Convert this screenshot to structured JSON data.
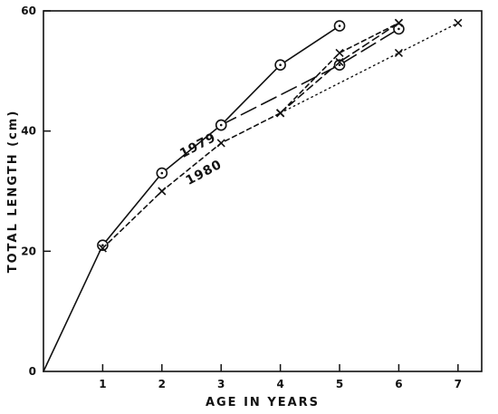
{
  "chart_data": {
    "type": "line",
    "xlabel": "AGE IN YEARS",
    "ylabel": "TOTAL LENGTH (cm)",
    "xlim": [
      0,
      7.4
    ],
    "ylim": [
      0,
      60
    ],
    "x_ticks": [
      1,
      2,
      3,
      4,
      5,
      6,
      7
    ],
    "x_tick_labels": [
      "1",
      "2",
      "3",
      "4",
      "5",
      "6",
      "7"
    ],
    "y_ticks": [
      0,
      20,
      40,
      60
    ],
    "y_tick_labels": [
      "0",
      "20",
      "40",
      "60"
    ],
    "origin_label": "0",
    "grid": false,
    "series": [
      {
        "line_style": "solid",
        "marker": "circle-dot",
        "points": [
          [
            0,
            0
          ],
          [
            1,
            21
          ],
          [
            2,
            33
          ],
          [
            3,
            41
          ],
          [
            4,
            51
          ],
          [
            5,
            57.5
          ]
        ]
      },
      {
        "line_style": "short-dash",
        "marker": "x",
        "points": [
          [
            1,
            20.5
          ],
          [
            2,
            30
          ],
          [
            3,
            38
          ],
          [
            4,
            43
          ],
          [
            5,
            53
          ],
          [
            6,
            58
          ]
        ]
      },
      {
        "line_style": "long-dash",
        "marker": "circle-dot",
        "points": [
          [
            3,
            41
          ],
          [
            5,
            51
          ],
          [
            6,
            57
          ]
        ]
      },
      {
        "line_style": "dash",
        "marker": "x",
        "points": [
          [
            4,
            43
          ],
          [
            5,
            51.5
          ],
          [
            6,
            58
          ]
        ]
      },
      {
        "line_style": "dotted",
        "marker": "x",
        "points": [
          [
            4,
            43
          ],
          [
            6,
            53
          ],
          [
            7,
            58
          ]
        ]
      }
    ],
    "annotations": [
      {
        "text": "1979",
        "x": 2.35,
        "y": 35.5,
        "angle": -28
      },
      {
        "text": "1980",
        "x": 2.45,
        "y": 31,
        "angle": -28
      }
    ]
  }
}
